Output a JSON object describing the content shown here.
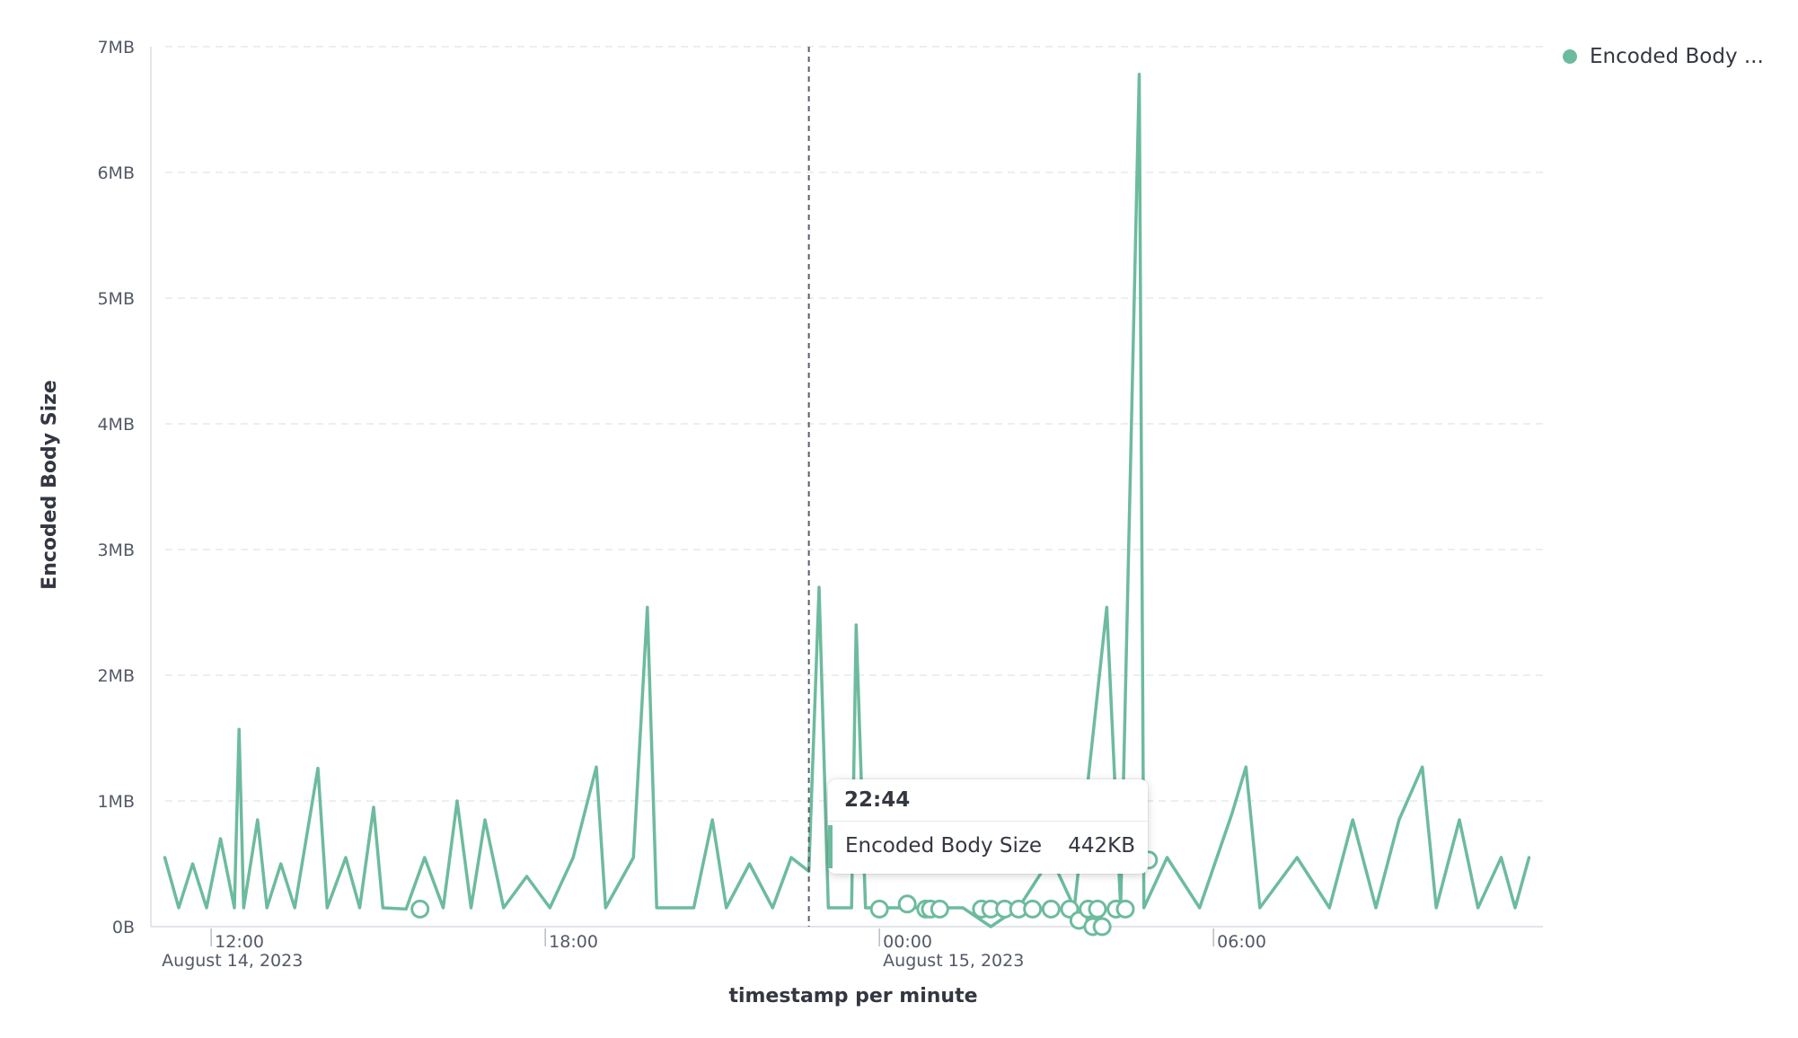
{
  "chart_data": {
    "type": "line",
    "xlabel": "timestamp per minute",
    "ylabel": "Encoded Body Size",
    "y_unit": "MB",
    "ylim": [
      0,
      7
    ],
    "yticks": [
      {
        "value": 0,
        "label": "0B"
      },
      {
        "value": 1,
        "label": "1MB"
      },
      {
        "value": 2,
        "label": "2MB"
      },
      {
        "value": 3,
        "label": "3MB"
      },
      {
        "value": 4,
        "label": "4MB"
      },
      {
        "value": 5,
        "label": "5MB"
      },
      {
        "value": 6,
        "label": "6MB"
      },
      {
        "value": 7,
        "label": "7MB"
      }
    ],
    "xlim": [
      "2023-08-14 10:55",
      "2023-08-15 11:55"
    ],
    "xticks": [
      {
        "value": "2023-08-14 12:00",
        "label": "12:00",
        "sublabel": "August 14, 2023"
      },
      {
        "value": "2023-08-14 18:00",
        "label": "18:00",
        "sublabel": ""
      },
      {
        "value": "2023-08-15 00:00",
        "label": "00:00",
        "sublabel": "August 15, 2023"
      },
      {
        "value": "2023-08-15 06:00",
        "label": "06:00",
        "sublabel": ""
      }
    ],
    "grid": true,
    "legend_position": "top-right",
    "color": "#6dbb9e",
    "series": [
      {
        "name": "Encoded Body ...",
        "points": [
          [
            "2023-08-14 11:10",
            0.55
          ],
          [
            "2023-08-14 11:25",
            0.15
          ],
          [
            "2023-08-14 11:40",
            0.5
          ],
          [
            "2023-08-14 11:55",
            0.15
          ],
          [
            "2023-08-14 12:10",
            0.7
          ],
          [
            "2023-08-14 12:25",
            0.15
          ],
          [
            "2023-08-14 12:30",
            1.57
          ],
          [
            "2023-08-14 12:35",
            0.15
          ],
          [
            "2023-08-14 12:50",
            0.85
          ],
          [
            "2023-08-14 13:00",
            0.15
          ],
          [
            "2023-08-14 13:15",
            0.5
          ],
          [
            "2023-08-14 13:30",
            0.15
          ],
          [
            "2023-08-14 13:55",
            1.26
          ],
          [
            "2023-08-14 14:05",
            0.15
          ],
          [
            "2023-08-14 14:25",
            0.55
          ],
          [
            "2023-08-14 14:40",
            0.15
          ],
          [
            "2023-08-14 14:55",
            0.95
          ],
          [
            "2023-08-14 15:05",
            0.15
          ],
          [
            "2023-08-14 15:30",
            0.14
          ],
          [
            "2023-08-14 15:50",
            0.55
          ],
          [
            "2023-08-14 16:10",
            0.15
          ],
          [
            "2023-08-14 16:25",
            1.0
          ],
          [
            "2023-08-14 16:40",
            0.15
          ],
          [
            "2023-08-14 16:55",
            0.85
          ],
          [
            "2023-08-14 17:15",
            0.15
          ],
          [
            "2023-08-14 17:40",
            0.4
          ],
          [
            "2023-08-14 18:05",
            0.15
          ],
          [
            "2023-08-14 18:30",
            0.55
          ],
          [
            "2023-08-14 18:55",
            1.27
          ],
          [
            "2023-08-14 19:05",
            0.15
          ],
          [
            "2023-08-14 19:35",
            0.55
          ],
          [
            "2023-08-14 19:50",
            2.54
          ],
          [
            "2023-08-14 20:00",
            0.15
          ],
          [
            "2023-08-14 20:40",
            0.15
          ],
          [
            "2023-08-14 21:00",
            0.85
          ],
          [
            "2023-08-14 21:15",
            0.15
          ],
          [
            "2023-08-14 21:40",
            0.5
          ],
          [
            "2023-08-14 22:05",
            0.15
          ],
          [
            "2023-08-14 22:25",
            0.55
          ],
          [
            "2023-08-14 22:44",
            0.44
          ],
          [
            "2023-08-14 22:55",
            2.7
          ],
          [
            "2023-08-14 23:05",
            0.15
          ],
          [
            "2023-08-14 23:30",
            0.15
          ],
          [
            "2023-08-14 23:35",
            2.4
          ],
          [
            "2023-08-14 23:45",
            0.15
          ],
          [
            "2023-08-15 00:30",
            0.15
          ],
          [
            "2023-08-15 01:30",
            0.15
          ],
          [
            "2023-08-15 02:00",
            0.0
          ],
          [
            "2023-08-15 02:30",
            0.15
          ],
          [
            "2023-08-15 03:05",
            0.55
          ],
          [
            "2023-08-15 03:30",
            0.15
          ],
          [
            "2023-08-15 04:05",
            2.54
          ],
          [
            "2023-08-15 04:20",
            0.15
          ],
          [
            "2023-08-15 04:40",
            6.78
          ],
          [
            "2023-08-15 04:45",
            0.15
          ],
          [
            "2023-08-15 05:10",
            0.55
          ],
          [
            "2023-08-15 05:45",
            0.15
          ],
          [
            "2023-08-15 06:20",
            0.9
          ],
          [
            "2023-08-15 06:35",
            1.27
          ],
          [
            "2023-08-15 06:50",
            0.15
          ],
          [
            "2023-08-15 07:30",
            0.55
          ],
          [
            "2023-08-15 08:05",
            0.15
          ],
          [
            "2023-08-15 08:30",
            0.85
          ],
          [
            "2023-08-15 08:55",
            0.15
          ],
          [
            "2023-08-15 09:20",
            0.85
          ],
          [
            "2023-08-15 09:45",
            1.27
          ],
          [
            "2023-08-15 10:00",
            0.15
          ],
          [
            "2023-08-15 10:25",
            0.85
          ],
          [
            "2023-08-15 10:45",
            0.15
          ],
          [
            "2023-08-15 11:10",
            0.55
          ],
          [
            "2023-08-15 11:25",
            0.15
          ],
          [
            "2023-08-15 11:40",
            0.55
          ]
        ],
        "isolated_points": [
          [
            "2023-08-14 15:45",
            0.14
          ],
          [
            "2023-08-15 00:00",
            0.14
          ],
          [
            "2023-08-15 00:30",
            0.18
          ],
          [
            "2023-08-15 00:50",
            0.14
          ],
          [
            "2023-08-15 00:55",
            0.14
          ],
          [
            "2023-08-15 01:05",
            0.14
          ],
          [
            "2023-08-15 01:50",
            0.14
          ],
          [
            "2023-08-15 02:00",
            0.14
          ],
          [
            "2023-08-15 02:15",
            0.14
          ],
          [
            "2023-08-15 02:30",
            0.14
          ],
          [
            "2023-08-15 02:45",
            0.14
          ],
          [
            "2023-08-15 03:05",
            0.14
          ],
          [
            "2023-08-15 03:25",
            0.14
          ],
          [
            "2023-08-15 03:35",
            0.05
          ],
          [
            "2023-08-15 03:45",
            0.14
          ],
          [
            "2023-08-15 03:50",
            0.0
          ],
          [
            "2023-08-15 03:55",
            0.14
          ],
          [
            "2023-08-15 04:00",
            0.0
          ],
          [
            "2023-08-15 04:15",
            0.14
          ],
          [
            "2023-08-15 04:25",
            0.14
          ],
          [
            "2023-08-15 04:50",
            0.53
          ]
        ]
      }
    ]
  },
  "legend": {
    "label": "Encoded Body ...",
    "color": "#6dbb9e"
  },
  "cursor": {
    "x": "2023-08-14 22:44"
  },
  "tooltip": {
    "title": "22:44",
    "series_label": "Encoded Body Size",
    "value": "442KB"
  }
}
